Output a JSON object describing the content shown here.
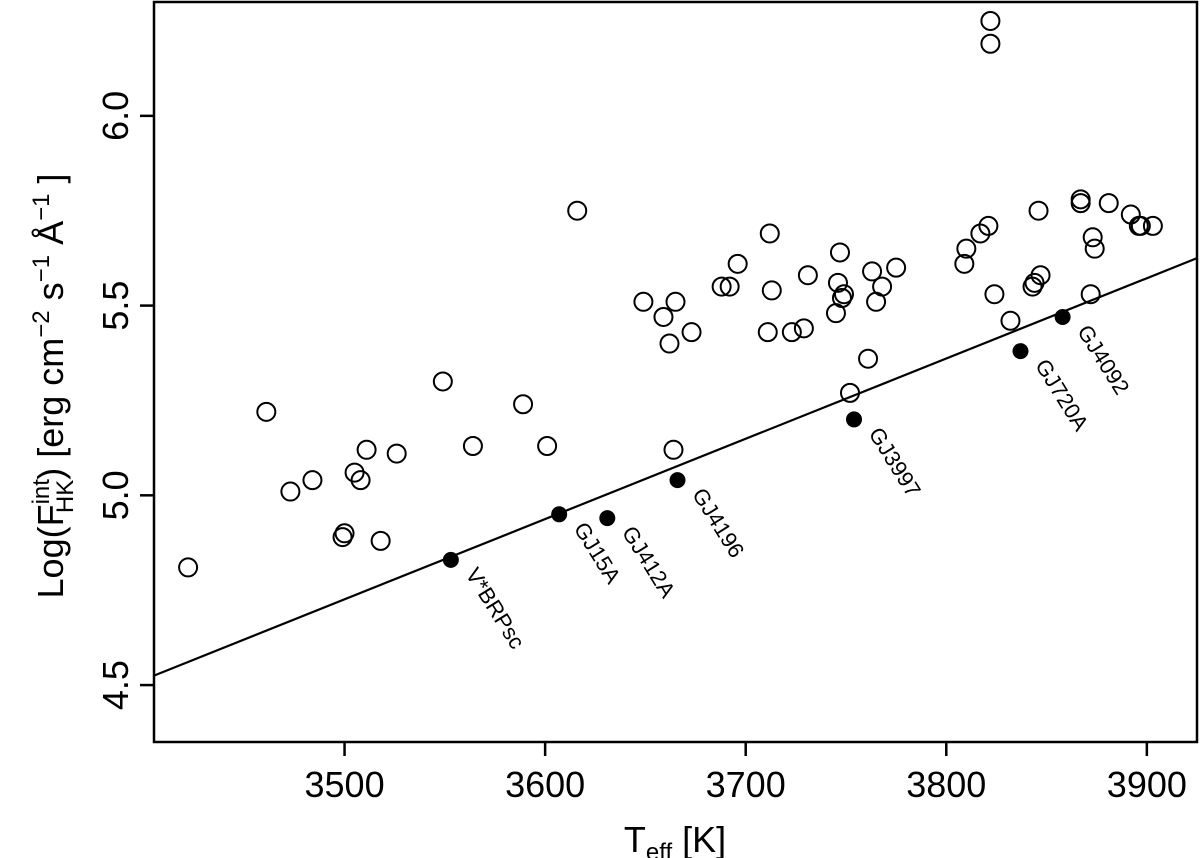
{
  "chart_data": {
    "type": "scatter",
    "xlabel": {
      "main": "T",
      "sub": "eff",
      "rest": " [K]"
    },
    "ylabel": {
      "prefix": "Log(F",
      "sup": "int",
      "sub": "HK",
      "mid": ") [erg cm",
      "exp1": "−2",
      "s": " s",
      "exp2": "−1",
      "angstrom": " Å",
      "exp3": "−1",
      "suffix": " ]"
    },
    "xlim": [
      3405,
      3925
    ],
    "ylim": [
      4.35,
      6.3
    ],
    "xticks": [
      3500,
      3600,
      3700,
      3800,
      3900
    ],
    "yticks": [
      4.5,
      5.0,
      5.5,
      6.0
    ],
    "xtick_labels": [
      "3500",
      "3600",
      "3700",
      "3800",
      "3900"
    ],
    "ytick_labels": [
      "4.5",
      "5.0",
      "5.5",
      "6.0"
    ],
    "grid": false,
    "series": [
      {
        "marker": "open-circle",
        "points": [
          [
            3422,
            4.81
          ],
          [
            3461,
            5.22
          ],
          [
            3473,
            5.01
          ],
          [
            3484,
            5.04
          ],
          [
            3499,
            4.89
          ],
          [
            3500,
            4.9
          ],
          [
            3505,
            5.06
          ],
          [
            3508,
            5.04
          ],
          [
            3511,
            5.12
          ],
          [
            3518,
            4.88
          ],
          [
            3526,
            5.11
          ],
          [
            3549,
            5.3
          ],
          [
            3564,
            5.13
          ],
          [
            3589,
            5.24
          ],
          [
            3601,
            5.13
          ],
          [
            3616,
            5.75
          ],
          [
            3649,
            5.51
          ],
          [
            3659,
            5.47
          ],
          [
            3662,
            5.4
          ],
          [
            3664,
            5.12
          ],
          [
            3665,
            5.51
          ],
          [
            3673,
            5.43
          ],
          [
            3688,
            5.55
          ],
          [
            3692,
            5.55
          ],
          [
            3696,
            5.61
          ],
          [
            3711,
            5.43
          ],
          [
            3712,
            5.69
          ],
          [
            3713,
            5.54
          ],
          [
            3723,
            5.43
          ],
          [
            3729,
            5.44
          ],
          [
            3731,
            5.58
          ],
          [
            3745,
            5.48
          ],
          [
            3746,
            5.56
          ],
          [
            3747,
            5.64
          ],
          [
            3748,
            5.52
          ],
          [
            3749,
            5.53
          ],
          [
            3752,
            5.27
          ],
          [
            3761,
            5.36
          ],
          [
            3763,
            5.59
          ],
          [
            3765,
            5.51
          ],
          [
            3768,
            5.55
          ],
          [
            3775,
            5.6
          ],
          [
            3809,
            5.61
          ],
          [
            3810,
            5.65
          ],
          [
            3817,
            5.69
          ],
          [
            3821,
            5.71
          ],
          [
            3822,
            6.19
          ],
          [
            3822,
            6.25
          ],
          [
            3824,
            5.53
          ],
          [
            3832,
            5.46
          ],
          [
            3843,
            5.55
          ],
          [
            3844,
            5.56
          ],
          [
            3846,
            5.75
          ],
          [
            3847,
            5.58
          ],
          [
            3867,
            5.77
          ],
          [
            3867,
            5.78
          ],
          [
            3872,
            5.53
          ],
          [
            3873,
            5.68
          ],
          [
            3874,
            5.65
          ],
          [
            3881,
            5.77
          ],
          [
            3892,
            5.74
          ],
          [
            3896,
            5.71
          ],
          [
            3897,
            5.71
          ],
          [
            3903,
            5.71
          ]
        ]
      },
      {
        "marker": "filled-circle",
        "points": [
          {
            "x": 3553,
            "y": 4.83,
            "label": "V*BRPsc"
          },
          {
            "x": 3607,
            "y": 4.95,
            "label": "GJ15A"
          },
          {
            "x": 3631,
            "y": 4.94,
            "label": "GJ412A"
          },
          {
            "x": 3666,
            "y": 5.04,
            "label": "GJ4196"
          },
          {
            "x": 3754,
            "y": 5.2,
            "label": "GJ3997"
          },
          {
            "x": 3837,
            "y": 5.38,
            "label": "GJ720A"
          },
          {
            "x": 3858,
            "y": 5.47,
            "label": "GJ4092"
          }
        ]
      }
    ],
    "fit_line": {
      "x": [
        3405,
        3925
      ],
      "y": [
        4.525,
        5.625
      ]
    }
  }
}
